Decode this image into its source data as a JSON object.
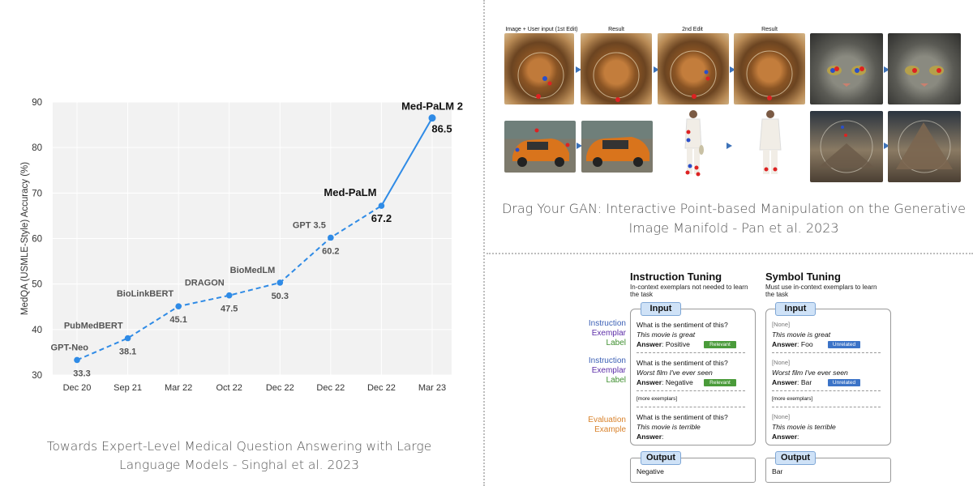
{
  "chart_data": {
    "type": "line",
    "ylabel": "MedQA (USMLE-Style) Accuracy (%)",
    "xlabel": "",
    "ylim": [
      30,
      90
    ],
    "y_ticks": [
      "30",
      "40",
      "50",
      "60",
      "70",
      "80",
      "90"
    ],
    "categories": [
      "Dec 20",
      "Sep 21",
      "Mar 22",
      "Oct 22",
      "Dec 22",
      "Dec 22",
      "Dec 22",
      "Mar 23"
    ],
    "points": [
      {
        "model": "GPT-Neo",
        "x": "Dec 20",
        "value": 33.3
      },
      {
        "model": "PubMedBERT",
        "x": "Sep 21",
        "value": 38.1
      },
      {
        "model": "BioLinkBERT",
        "x": "Mar 22",
        "value": 45.1
      },
      {
        "model": "DRAGON",
        "x": "Oct 22",
        "value": 47.5
      },
      {
        "model": "BioMedLM",
        "x": "Dec 22",
        "value": 50.3
      },
      {
        "model": "GPT 3.5",
        "x": "Dec 22",
        "value": 60.2
      },
      {
        "model": "Med-PaLM",
        "x": "Dec 22",
        "value": 67.2
      },
      {
        "model": "Med-PaLM 2",
        "x": "Mar 23",
        "value": 86.5
      }
    ],
    "grid": true,
    "line_color": "#2f8be6",
    "background": "#f2f2f2"
  },
  "captions": {
    "left": "Towards Expert-Level Medical Question Answering with Large Language Models - Singhal et al. 2023",
    "right": "Drag Your GAN: Interactive Point-based Manipulation on the Generative Image Manifold - Pan et al. 2023"
  },
  "draggan": {
    "labels": [
      "Image + User input (1st Edit)",
      "Result",
      "2nd Edit",
      "Result"
    ]
  },
  "symbol_tuning": {
    "instruction": {
      "title": "Instruction Tuning",
      "subtitle_1": "In-context exemplars not needed to learn",
      "subtitle_2": "the task",
      "input": "Input",
      "q1": "What is the sentiment of this?",
      "e1": "This movie is great",
      "a1_label": "Answer",
      "a1": "Positive",
      "tag1": "Relevant",
      "q2": "What is the sentiment of this?",
      "e2": "Worst film I've ever seen",
      "a2_label": "Answer",
      "a2": "Negative",
      "tag2": "Relevant",
      "more": "[more exemplars]",
      "q3": "What is the sentiment of this?",
      "e3": "This movie is terrible",
      "a3_label": "Answer",
      "output": "Output",
      "output_value": "Negative"
    },
    "symbol": {
      "title": "Symbol Tuning",
      "subtitle_1": "Must use in-context exemplars to learn",
      "subtitle_2": "the task",
      "input": "Input",
      "q1": "[None]",
      "e1": "This movie is great",
      "a1_label": "Answer",
      "a1": "Foo",
      "tag1": "Unrelated",
      "q2": "[None]",
      "e2": "Worst film I've ever seen",
      "a2_label": "Answer",
      "a2": "Bar",
      "tag2": "Unrelated",
      "more": "[more exemplars]",
      "q3": "[None]",
      "e3": "This movie is terrible",
      "a3_label": "Answer",
      "output": "Output",
      "output_value": "Bar"
    },
    "side_labels": {
      "g1": [
        "Instruction",
        "Exemplar",
        "Label"
      ],
      "g2": [
        "Instruction",
        "Exemplar",
        "Label"
      ],
      "g3": [
        "Evaluation",
        "Example"
      ]
    }
  }
}
